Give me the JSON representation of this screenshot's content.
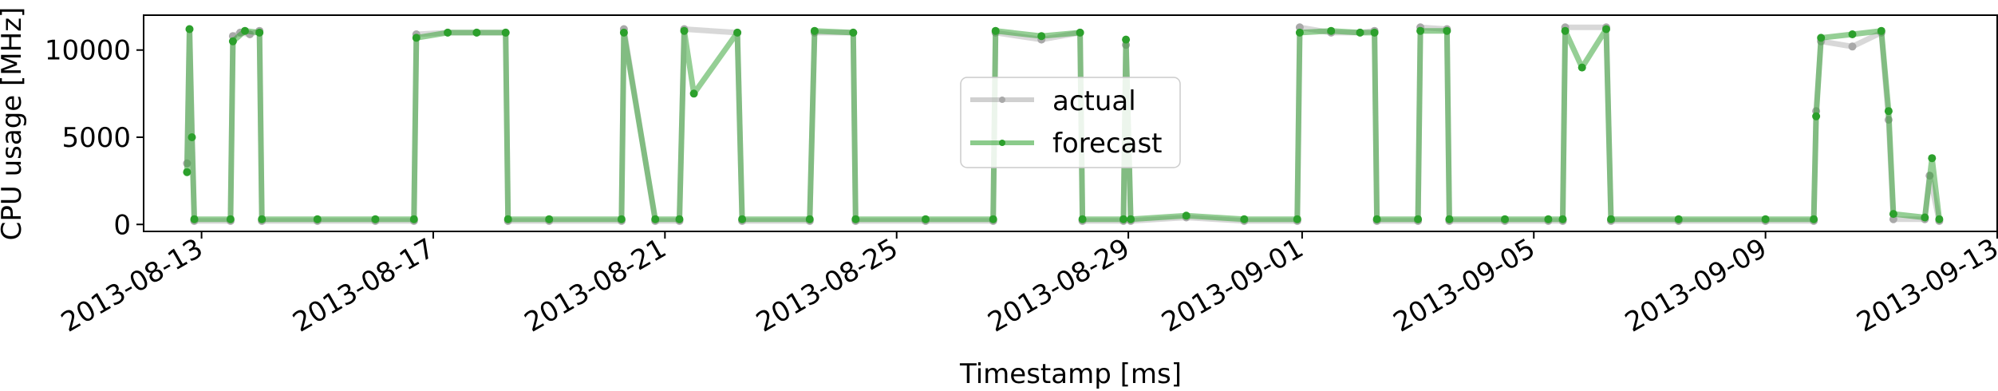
{
  "chart_data": {
    "type": "line",
    "title": "",
    "xlabel": "Timestamp [ms]",
    "ylabel": "CPU usage [MHz]",
    "x_type": "datetime",
    "xlim": [
      "2013-08-12T00:00",
      "2013-09-13T00:00"
    ],
    "ylim": [
      -400,
      12000
    ],
    "x_ticks": [
      "2013-08-13",
      "2013-08-17",
      "2013-08-21",
      "2013-08-25",
      "2013-08-29",
      "2013-09-01",
      "2013-09-05",
      "2013-09-09",
      "2013-09-13"
    ],
    "y_ticks": [
      0,
      5000,
      10000
    ],
    "y_tick_labels": [
      "0",
      "5000",
      "10000"
    ],
    "grid": false,
    "legend": {
      "placement": "center",
      "entries": [
        "actual",
        "forecast"
      ]
    },
    "series": [
      {
        "name": "actual",
        "color": "#a9a9a9",
        "points": [
          [
            "2013-08-12T18:00",
            3500
          ],
          [
            "2013-08-12T19:00",
            11200
          ],
          [
            "2013-08-12T21:00",
            200
          ],
          [
            "2013-08-13T12:00",
            200
          ],
          [
            "2013-08-13T13:00",
            10800
          ],
          [
            "2013-08-13T16:00",
            11000
          ],
          [
            "2013-08-13T20:00",
            10900
          ],
          [
            "2013-08-14T00:00",
            11100
          ],
          [
            "2013-08-14T01:00",
            200
          ],
          [
            "2013-08-15T00:00",
            200
          ],
          [
            "2013-08-16T00:00",
            200
          ],
          [
            "2013-08-16T16:00",
            200
          ],
          [
            "2013-08-16T17:00",
            10900
          ],
          [
            "2013-08-17T06:00",
            11000
          ],
          [
            "2013-08-17T18:00",
            11000
          ],
          [
            "2013-08-18T06:00",
            11000
          ],
          [
            "2013-08-18T07:00",
            200
          ],
          [
            "2013-08-19T00:00",
            200
          ],
          [
            "2013-08-20T06:00",
            200
          ],
          [
            "2013-08-20T07:00",
            11200
          ],
          [
            "2013-08-20T20:00",
            200
          ],
          [
            "2013-08-21T06:00",
            200
          ],
          [
            "2013-08-21T08:00",
            11200
          ],
          [
            "2013-08-22T06:00",
            11000
          ],
          [
            "2013-08-22T08:00",
            200
          ],
          [
            "2013-08-23T12:00",
            200
          ],
          [
            "2013-08-23T14:00",
            11000
          ],
          [
            "2013-08-24T06:00",
            11000
          ],
          [
            "2013-08-24T07:00",
            200
          ],
          [
            "2013-08-25T12:00",
            200
          ],
          [
            "2013-08-26T16:00",
            200
          ],
          [
            "2013-08-26T17:00",
            11000
          ],
          [
            "2013-08-27T12:00",
            10600
          ],
          [
            "2013-08-28T04:00",
            11000
          ],
          [
            "2013-08-28T05:00",
            200
          ],
          [
            "2013-08-28T22:00",
            200
          ],
          [
            "2013-08-28T23:00",
            10300
          ],
          [
            "2013-08-29T01:00",
            200
          ],
          [
            "2013-08-30T00:00",
            400
          ],
          [
            "2013-08-31T00:00",
            200
          ],
          [
            "2013-08-31T22:00",
            200
          ],
          [
            "2013-08-31T23:00",
            11300
          ],
          [
            "2013-09-01T12:00",
            11000
          ],
          [
            "2013-09-02T00:00",
            11000
          ],
          [
            "2013-09-02T06:00",
            11100
          ],
          [
            "2013-09-02T07:00",
            200
          ],
          [
            "2013-09-03T00:00",
            200
          ],
          [
            "2013-09-03T01:00",
            11300
          ],
          [
            "2013-09-03T12:00",
            11200
          ],
          [
            "2013-09-03T13:00",
            200
          ],
          [
            "2013-09-04T12:00",
            200
          ],
          [
            "2013-09-05T06:00",
            200
          ],
          [
            "2013-09-05T12:00",
            200
          ],
          [
            "2013-09-05T13:00",
            11300
          ],
          [
            "2013-09-06T06:00",
            11300
          ],
          [
            "2013-09-06T08:00",
            200
          ],
          [
            "2013-09-07T12:00",
            200
          ],
          [
            "2013-09-09T00:00",
            200
          ],
          [
            "2013-09-09T20:00",
            200
          ],
          [
            "2013-09-09T21:00",
            6500
          ],
          [
            "2013-09-09T23:00",
            10500
          ],
          [
            "2013-09-10T12:00",
            10200
          ],
          [
            "2013-09-11T00:00",
            11000
          ],
          [
            "2013-09-11T03:00",
            6000
          ],
          [
            "2013-09-11T05:00",
            300
          ],
          [
            "2013-09-11T18:00",
            300
          ],
          [
            "2013-09-11T20:00",
            2800
          ],
          [
            "2013-09-12T00:00",
            200
          ]
        ]
      },
      {
        "name": "forecast",
        "color": "#2ca02c",
        "points": [
          [
            "2013-08-12T18:00",
            3000
          ],
          [
            "2013-08-12T19:00",
            11200
          ],
          [
            "2013-08-12T20:00",
            5000
          ],
          [
            "2013-08-12T21:00",
            300
          ],
          [
            "2013-08-13T12:00",
            300
          ],
          [
            "2013-08-13T13:00",
            10500
          ],
          [
            "2013-08-13T18:00",
            11100
          ],
          [
            "2013-08-14T00:00",
            11000
          ],
          [
            "2013-08-14T01:00",
            300
          ],
          [
            "2013-08-15T00:00",
            300
          ],
          [
            "2013-08-16T00:00",
            300
          ],
          [
            "2013-08-16T16:00",
            300
          ],
          [
            "2013-08-16T17:00",
            10700
          ],
          [
            "2013-08-17T06:00",
            11000
          ],
          [
            "2013-08-17T18:00",
            11000
          ],
          [
            "2013-08-18T06:00",
            11000
          ],
          [
            "2013-08-18T07:00",
            300
          ],
          [
            "2013-08-19T00:00",
            300
          ],
          [
            "2013-08-20T06:00",
            300
          ],
          [
            "2013-08-20T07:00",
            11000
          ],
          [
            "2013-08-20T20:00",
            300
          ],
          [
            "2013-08-21T06:00",
            300
          ],
          [
            "2013-08-21T08:00",
            11100
          ],
          [
            "2013-08-21T12:00",
            7500
          ],
          [
            "2013-08-22T06:00",
            11000
          ],
          [
            "2013-08-22T08:00",
            300
          ],
          [
            "2013-08-23T12:00",
            300
          ],
          [
            "2013-08-23T14:00",
            11100
          ],
          [
            "2013-08-24T06:00",
            11000
          ],
          [
            "2013-08-24T07:00",
            300
          ],
          [
            "2013-08-25T12:00",
            300
          ],
          [
            "2013-08-26T16:00",
            300
          ],
          [
            "2013-08-26T17:00",
            11100
          ],
          [
            "2013-08-27T12:00",
            10800
          ],
          [
            "2013-08-28T04:00",
            11000
          ],
          [
            "2013-08-28T05:00",
            300
          ],
          [
            "2013-08-28T22:00",
            300
          ],
          [
            "2013-08-28T23:00",
            10600
          ],
          [
            "2013-08-29T01:00",
            300
          ],
          [
            "2013-08-30T00:00",
            500
          ],
          [
            "2013-08-31T00:00",
            300
          ],
          [
            "2013-08-31T22:00",
            300
          ],
          [
            "2013-08-31T23:00",
            11000
          ],
          [
            "2013-09-01T12:00",
            11100
          ],
          [
            "2013-09-02T00:00",
            11000
          ],
          [
            "2013-09-02T06:00",
            11000
          ],
          [
            "2013-09-02T07:00",
            300
          ],
          [
            "2013-09-03T00:00",
            300
          ],
          [
            "2013-09-03T01:00",
            11100
          ],
          [
            "2013-09-03T12:00",
            11100
          ],
          [
            "2013-09-03T13:00",
            300
          ],
          [
            "2013-09-04T12:00",
            300
          ],
          [
            "2013-09-05T06:00",
            300
          ],
          [
            "2013-09-05T12:00",
            300
          ],
          [
            "2013-09-05T13:00",
            11100
          ],
          [
            "2013-09-05T20:00",
            9000
          ],
          [
            "2013-09-06T06:00",
            11200
          ],
          [
            "2013-09-06T08:00",
            300
          ],
          [
            "2013-09-07T12:00",
            300
          ],
          [
            "2013-09-09T00:00",
            300
          ],
          [
            "2013-09-09T20:00",
            300
          ],
          [
            "2013-09-09T21:00",
            6200
          ],
          [
            "2013-09-09T23:00",
            10700
          ],
          [
            "2013-09-10T12:00",
            10900
          ],
          [
            "2013-09-11T00:00",
            11100
          ],
          [
            "2013-09-11T03:00",
            6500
          ],
          [
            "2013-09-11T05:00",
            600
          ],
          [
            "2013-09-11T18:00",
            400
          ],
          [
            "2013-09-11T21:00",
            3800
          ],
          [
            "2013-09-12T00:00",
            300
          ]
        ]
      }
    ]
  }
}
